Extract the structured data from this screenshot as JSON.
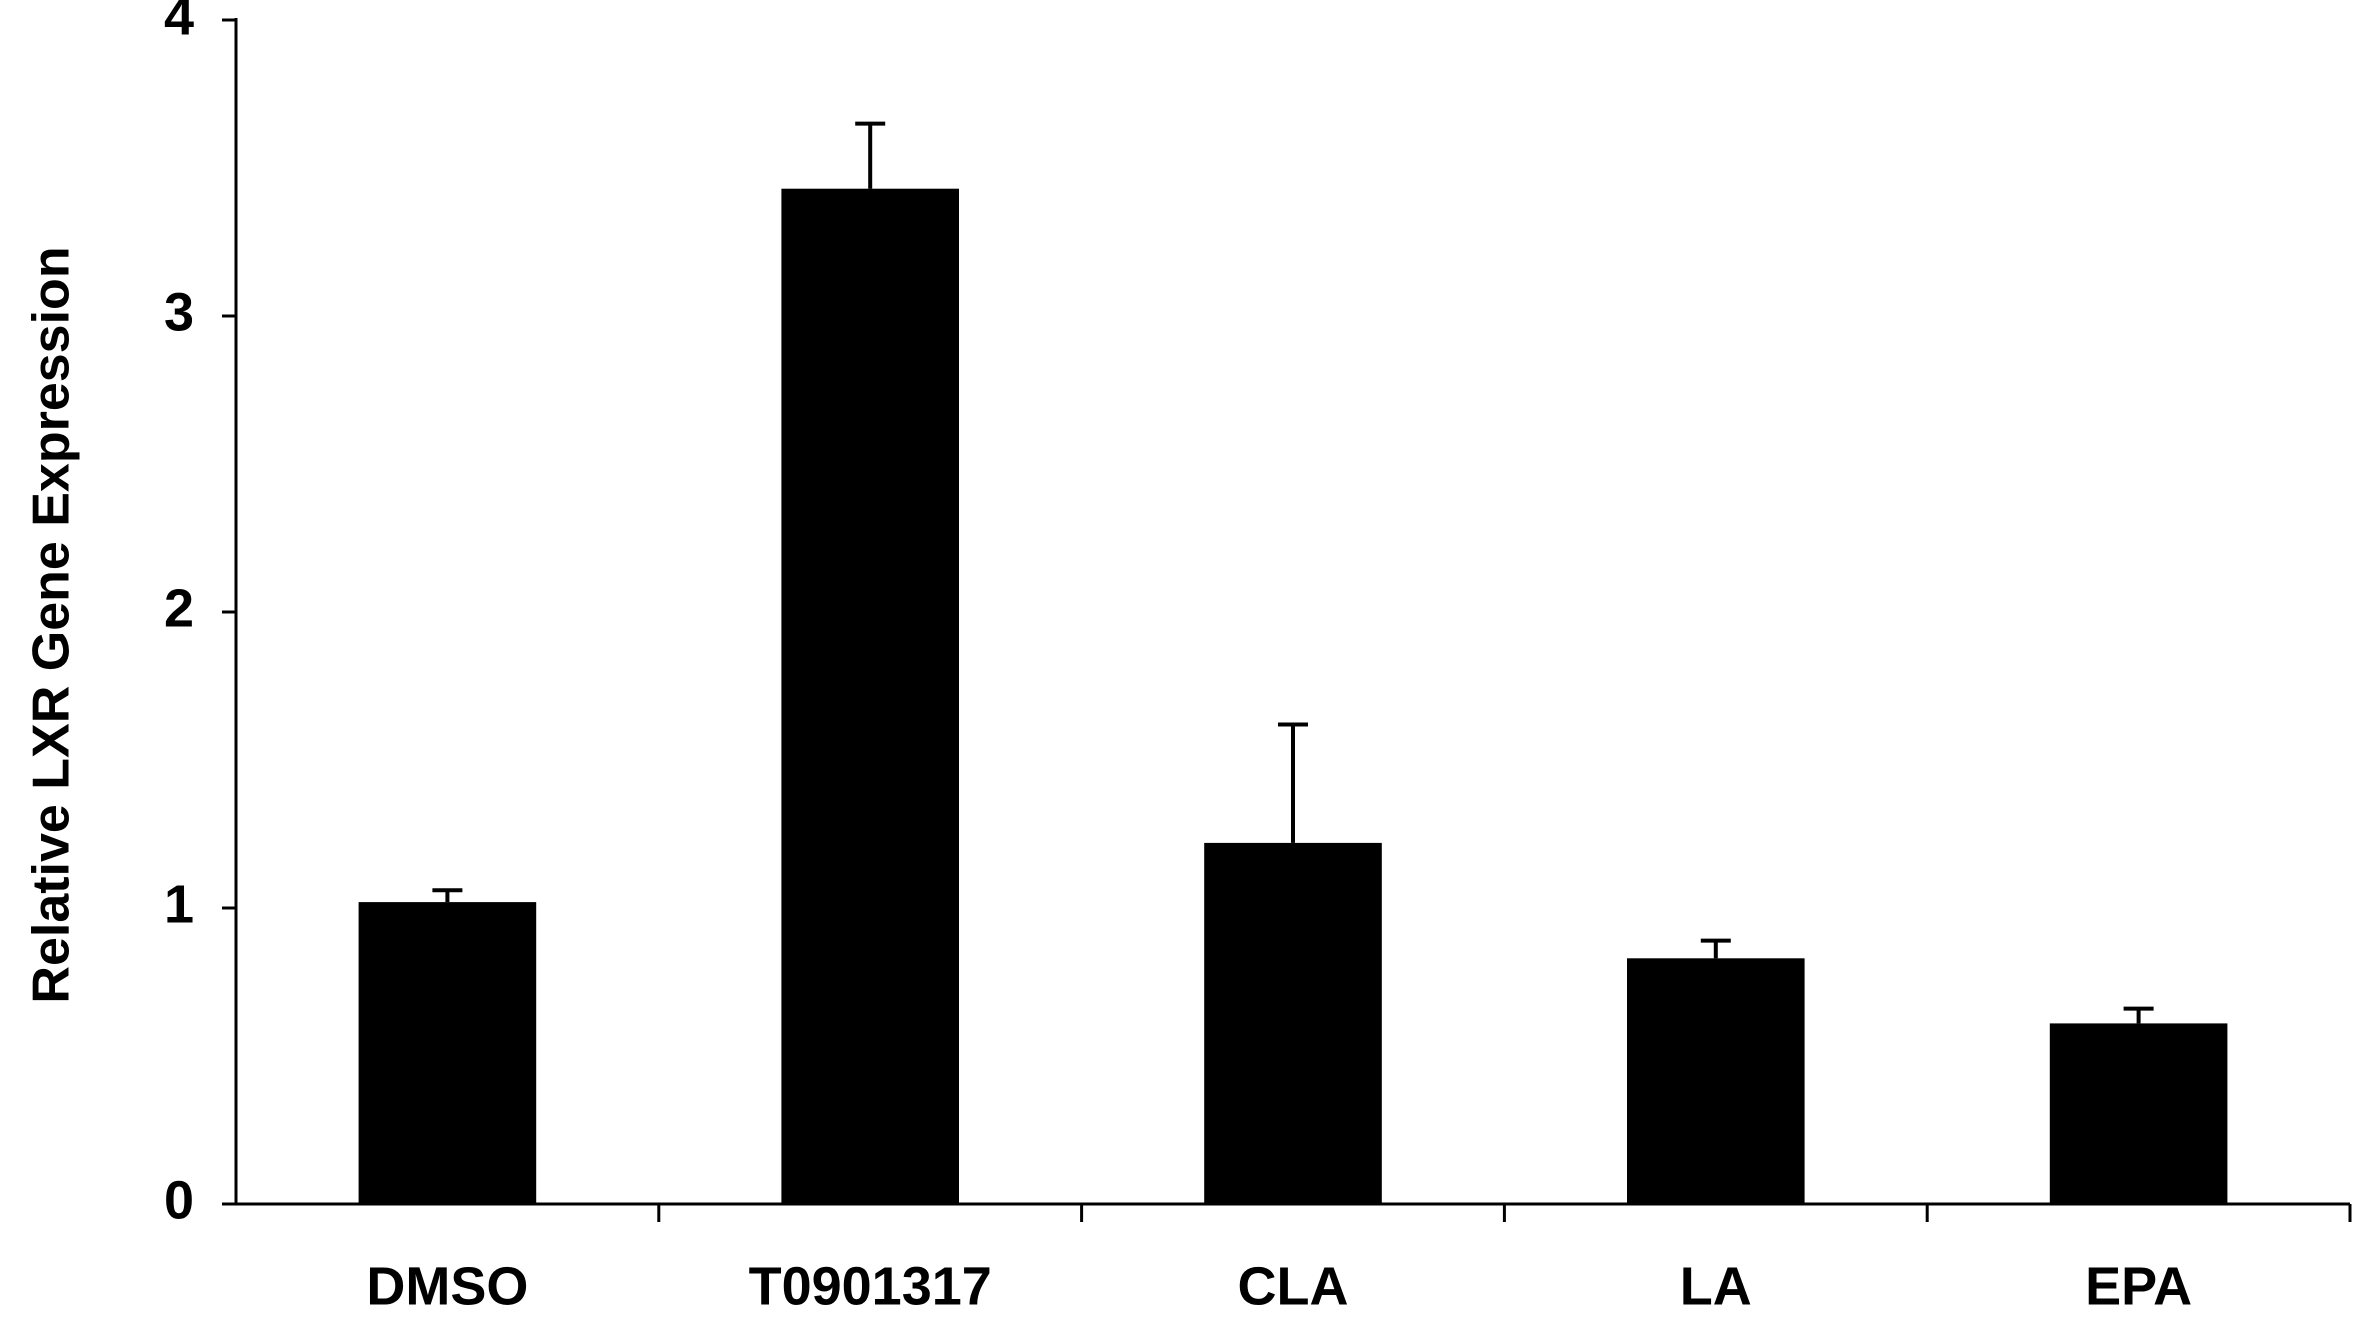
{
  "chart_data": {
    "type": "bar",
    "title": "",
    "xlabel": "",
    "ylabel": "Relative LXR Gene Expression",
    "categories": [
      "DMSO",
      "T0901317",
      "CLA",
      "LA",
      "EPA"
    ],
    "values": [
      1.02,
      3.43,
      1.22,
      0.83,
      0.61
    ],
    "error": [
      0.04,
      0.22,
      0.4,
      0.06,
      0.05
    ],
    "ylim": [
      0,
      4
    ],
    "yticks": [
      0,
      1,
      2,
      3,
      4
    ],
    "grid": false,
    "legend": "none",
    "colors": {
      "bar": "#000000",
      "axis": "#000000",
      "background": "#ffffff"
    }
  }
}
